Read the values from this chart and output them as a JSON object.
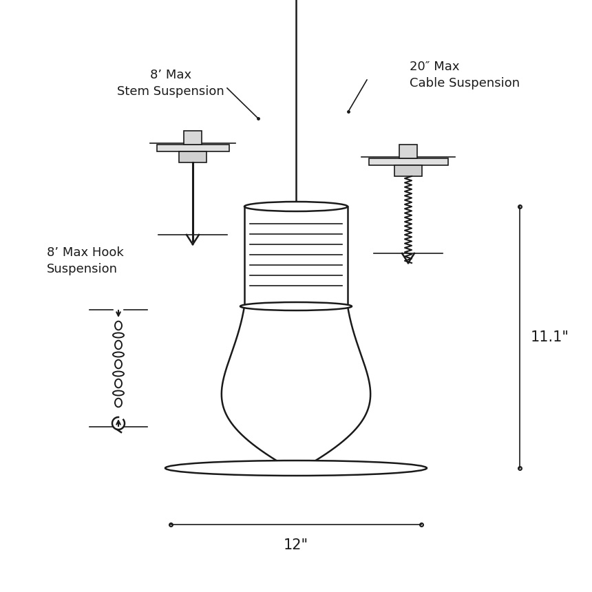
{
  "bg_color": "#ffffff",
  "line_color": "#1a1a1a",
  "text_color": "#1a1a1a",
  "dim_12": "12\"",
  "dim_11": "11.1\"",
  "label_stem": "8’ Max\nStem Suspension",
  "label_cable": "20″ Max\nCable Suspension",
  "label_hook": "8’ Max Hook\nSuspension",
  "font_size_label": 13,
  "font_size_dim": 15
}
